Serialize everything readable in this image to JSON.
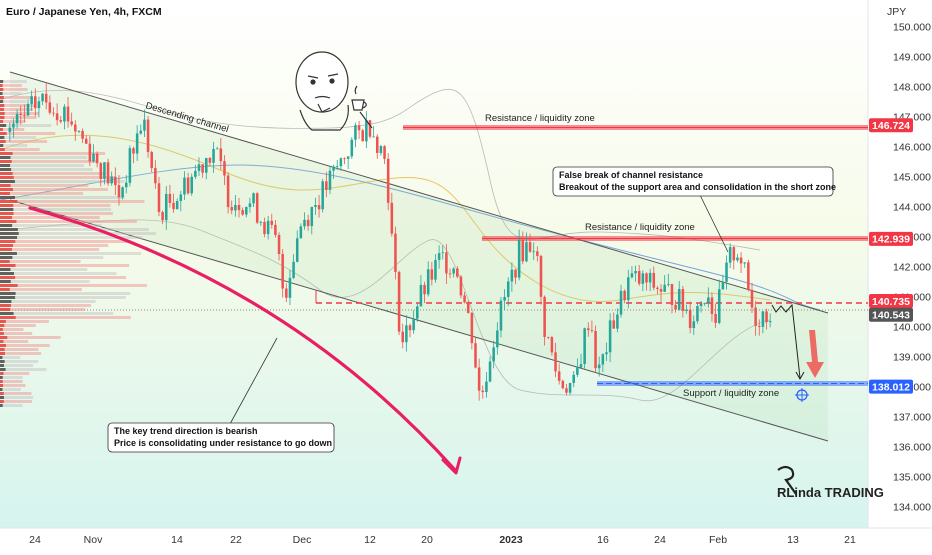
{
  "header": {
    "title": "Euro / Japanese Yen, 4h, FXCM",
    "currency": "JPY"
  },
  "annotations": {
    "channel_label": "Descending channel",
    "resistance_top": "Resistance / liquidity zone",
    "resistance_mid": "Resistance / liquidity zone",
    "support": "Support / liquidity zone",
    "note_false_break": [
      "False break of channel resistance",
      "Breakout of the support area and consolidation in the short zone"
    ],
    "note_trend": [
      "The key trend direction is bearish",
      "Price is consolidating under resistance to go down"
    ]
  },
  "logo": {
    "text": "RLinda TRADING"
  },
  "colors": {
    "bull": "#26a69a",
    "bear": "#ef5350",
    "resistance": "#f23645",
    "support": "#2962ff",
    "curve": "#e91e63",
    "tag_dark": "#555555"
  },
  "chart_data": {
    "type": "candlestick",
    "title": "Euro / Japanese Yen, 4h, FXCM",
    "ylabel": "JPY",
    "ylim": [
      133.3,
      150.9
    ],
    "y_ticks": [
      "150.000",
      "149.000",
      "148.000",
      "147.000",
      "146.000",
      "145.000",
      "144.000",
      "143.000",
      "142.000",
      "141.000",
      "140.000",
      "139.000",
      "138.000",
      "137.000",
      "136.000",
      "135.000",
      "134.000"
    ],
    "x_ticks": [
      "24",
      "Nov",
      "14",
      "22",
      "Dec",
      "12",
      "20",
      "2023",
      "16",
      "24",
      "Feb",
      "13",
      "21"
    ],
    "price_levels": [
      {
        "label": "146.724",
        "value": 146.724,
        "kind": "resistance"
      },
      {
        "label": "142.939",
        "value": 142.939,
        "kind": "resistance"
      },
      {
        "label": "140.735",
        "value": 140.735,
        "kind": "resistance"
      },
      {
        "label": "140.543",
        "value": 140.543,
        "kind": "last"
      },
      {
        "label": "138.012",
        "value": 138.012,
        "kind": "support"
      }
    ],
    "price_path": [
      [
        0,
        146.5
      ],
      [
        0.04,
        147.6
      ],
      [
        0.07,
        147.2
      ],
      [
        0.11,
        145.6
      ],
      [
        0.14,
        144.4
      ],
      [
        0.17,
        147.0
      ],
      [
        0.19,
        143.8
      ],
      [
        0.22,
        144.6
      ],
      [
        0.26,
        146.0
      ],
      [
        0.28,
        144.3
      ],
      [
        0.31,
        144.1
      ],
      [
        0.34,
        142.8
      ],
      [
        0.35,
        141.0
      ],
      [
        0.37,
        143.4
      ],
      [
        0.4,
        144.5
      ],
      [
        0.42,
        145.4
      ],
      [
        0.44,
        146.3
      ],
      [
        0.46,
        146.8
      ],
      [
        0.48,
        145.5
      ],
      [
        0.49,
        142.0
      ],
      [
        0.5,
        139.4
      ],
      [
        0.52,
        140.8
      ],
      [
        0.55,
        142.3
      ],
      [
        0.57,
        142.0
      ],
      [
        0.59,
        139.7
      ],
      [
        0.6,
        137.5
      ],
      [
        0.62,
        140.0
      ],
      [
        0.65,
        142.5
      ],
      [
        0.67,
        142.9
      ],
      [
        0.68,
        140.2
      ],
      [
        0.7,
        138.2
      ],
      [
        0.72,
        138.0
      ],
      [
        0.74,
        140.5
      ],
      [
        0.75,
        138.3
      ],
      [
        0.77,
        140.2
      ],
      [
        0.79,
        141.6
      ],
      [
        0.82,
        141.4
      ],
      [
        0.85,
        141.0
      ],
      [
        0.87,
        140.3
      ],
      [
        0.89,
        141.3
      ],
      [
        0.9,
        140.3
      ],
      [
        0.92,
        142.4
      ],
      [
        0.93,
        142.6
      ],
      [
        0.95,
        140.3
      ],
      [
        0.97,
        140.543
      ]
    ]
  }
}
